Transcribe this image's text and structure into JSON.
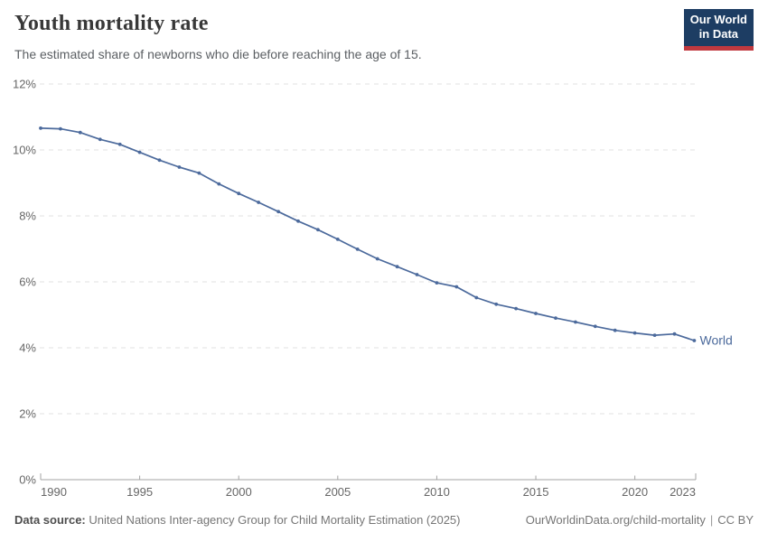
{
  "colors": {
    "line": "#4C6A9C",
    "logo_bg": "#1D3D63",
    "logo_accent": "#C0393F",
    "grid": "#E0E0E0",
    "axis": "#A3A3A3",
    "tick_text": "#666666"
  },
  "header": {
    "title": "Youth mortality rate",
    "subtitle": "The estimated share of newborns who die before reaching the age of 15.",
    "logo": {
      "line1": "Our World",
      "line2": "in Data"
    }
  },
  "chart_data": {
    "type": "line",
    "title": "Youth mortality rate",
    "xlabel": "",
    "ylabel": "",
    "ylim": [
      0,
      12
    ],
    "yticks": [
      0,
      2,
      4,
      6,
      8,
      10,
      12
    ],
    "y_tick_suffix": "%",
    "xticks": [
      1990,
      1995,
      2000,
      2005,
      2010,
      2015,
      2020,
      2023
    ],
    "grid": "horizontal-dashed",
    "legend": "end-of-line-label",
    "x": [
      1990,
      1991,
      1992,
      1993,
      1994,
      1995,
      1996,
      1997,
      1998,
      1999,
      2000,
      2001,
      2002,
      2003,
      2004,
      2005,
      2006,
      2007,
      2008,
      2009,
      2010,
      2011,
      2012,
      2013,
      2014,
      2015,
      2016,
      2017,
      2018,
      2019,
      2020,
      2021,
      2022,
      2023
    ],
    "series": [
      {
        "name": "World",
        "color": "#4C6A9C",
        "values": [
          10.66,
          10.64,
          10.53,
          10.32,
          10.17,
          9.93,
          9.69,
          9.48,
          9.3,
          8.97,
          8.68,
          8.41,
          8.13,
          7.84,
          7.58,
          7.29,
          6.99,
          6.7,
          6.46,
          6.22,
          5.97,
          5.85,
          5.52,
          5.32,
          5.19,
          5.04,
          4.9,
          4.78,
          4.65,
          4.53,
          4.45,
          4.38,
          4.42,
          4.22
        ]
      }
    ]
  },
  "footer": {
    "source_label": "Data source:",
    "source_text": " United Nations Inter-agency Group for Child Mortality Estimation (2025)",
    "url": "OurWorldinData.org/child-mortality",
    "separator": "|",
    "license": "CC BY"
  }
}
